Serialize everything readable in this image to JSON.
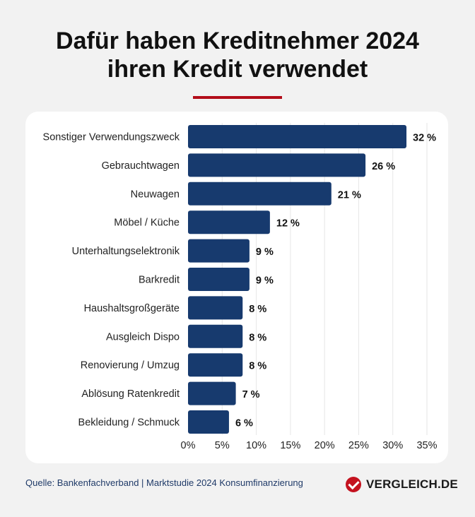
{
  "header": {
    "title_line1": "Dafür haben Kreditnehmer 2024",
    "title_line2": "ihren Kredit verwendet"
  },
  "chart_data": {
    "type": "bar",
    "orientation": "horizontal",
    "title": "Dafür haben Kreditnehmer 2024 ihren Kredit verwendet",
    "categories": [
      "Sonstiger Verwendungszweck",
      "Gebrauchtwagen",
      "Neuwagen",
      "Möbel / Küche",
      "Unterhaltungselektronik",
      "Barkredit",
      "Haushaltsgroßgeräte",
      "Ausgleich Dispo",
      "Renovierung / Umzug",
      "Ablösung Ratenkredit",
      "Bekleidung / Schmuck"
    ],
    "values": [
      32,
      26,
      21,
      12,
      9,
      9,
      8,
      8,
      8,
      7,
      6
    ],
    "value_labels": [
      "32 %",
      "26 %",
      "21 %",
      "12 %",
      "9 %",
      "9 %",
      "8 %",
      "8 %",
      "8 %",
      "7 %",
      "6 %"
    ],
    "xlim": [
      0,
      35
    ],
    "x_ticks": [
      0,
      5,
      10,
      15,
      20,
      25,
      30,
      35
    ],
    "x_tick_labels": [
      "0%",
      "5%",
      "10%",
      "15%",
      "20%",
      "25%",
      "30%",
      "35%"
    ],
    "grid": true,
    "bar_color": "#173a6e"
  },
  "footer": {
    "source": "Quelle: Bankenfachverband | Marktstudie 2024 Konsumfinanzierung",
    "brand": "VERGLEICH.DE"
  },
  "colors": {
    "accent": "#b30d1a",
    "background": "#f2f2f2"
  }
}
